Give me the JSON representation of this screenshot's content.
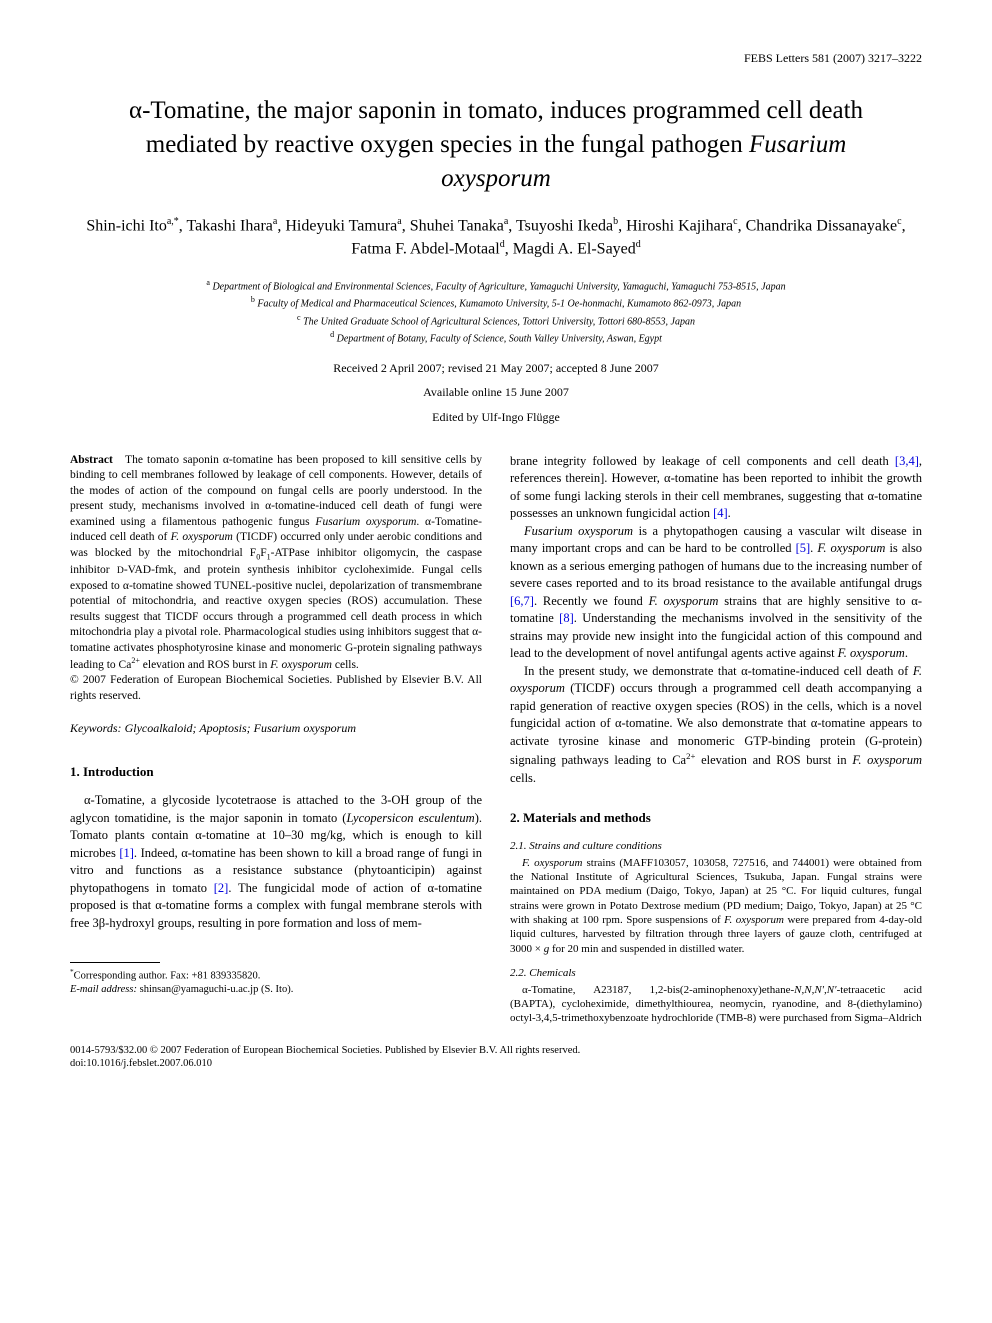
{
  "header": "FEBS Letters 581 (2007) 3217–3222",
  "title_html": "α-Tomatine, the major saponin in tomato, induces programmed cell death mediated by reactive oxygen species in the fungal pathogen <em>Fusarium oxysporum</em>",
  "authors_html": "Shin-ichi Ito<sup>a,*</sup>, Takashi Ihara<sup>a</sup>, Hideyuki Tamura<sup>a</sup>, Shuhei Tanaka<sup>a</sup>, Tsuyoshi Ikeda<sup>b</sup>, Hiroshi Kajihara<sup>c</sup>, Chandrika Dissanayake<sup>c</sup>, Fatma F. Abdel-Motaal<sup>d</sup>, Magdi A. El-Sayed<sup>d</sup>",
  "affiliations_html": "<sup>a</sup> Department of Biological and Environmental Sciences, Faculty of Agriculture, Yamaguchi University, Yamaguchi, Yamaguchi 753-8515, Japan<br><sup>b</sup> Faculty of Medical and Pharmaceutical Sciences, Kumamoto University, 5-1 Oe-honmachi, Kumamoto 862-0973, Japan<br><sup>c</sup> The United Graduate School of Agricultural Sciences, Tottori University, Tottori 680-8553, Japan<br><sup>d</sup> Department of Botany, Faculty of Science, South Valley University, Aswan, Egypt",
  "dates": "Received 2 April 2007; revised 21 May 2007; accepted 8 June 2007",
  "available": "Available online 15 June 2007",
  "edited": "Edited by Ulf-Ingo Flügge",
  "abstract_html": "<strong>Abstract</strong>&nbsp;&nbsp;&nbsp;The tomato saponin α-tomatine has been proposed to kill sensitive cells by binding to cell membranes followed by leakage of cell components. However, details of the modes of action of the compound on fungal cells are poorly understood. In the present study, mechanisms involved in α-tomatine-induced cell death of fungi were examined using a filamentous pathogenic fungus <em>Fusarium oxysporum</em>. α-Tomatine-induced cell death of <em>F. oxysporum</em> (TICDF) occurred only under aerobic conditions and was blocked by the mitochondrial F<sub>0</sub>F<sub>1</sub>-ATPase inhibitor oligomycin, the caspase inhibitor <small>D</small>-VAD-fmk, and protein synthesis inhibitor cycloheximide. Fungal cells exposed to α-tomatine showed TUNEL-positive nuclei, depolarization of transmembrane potential of mitochondria, and reactive oxygen species (ROS) accumulation. These results suggest that TICDF occurs through a programmed cell death process in which mitochondria play a pivotal role. Pharmacological studies using inhibitors suggest that α-tomatine activates phosphotyrosine kinase and monomeric G-protein signaling pathways leading to Ca<sup>2+</sup> elevation and ROS burst in <em>F. oxysporum</em> cells.<br>© 2007 Federation of European Biochemical Societies. Published by Elsevier B.V. All rights reserved.",
  "keywords_html": "<span class=\"label\">Keywords:</span> Glycoalkaloid; Apoptosis; <em>Fusarium oxysporum</em>",
  "section1_heading": "1. Introduction",
  "intro_p1_html": "α-Tomatine, a glycoside lycotetraose is attached to the 3-OH group of the aglycon tomatidine, is the major saponin in tomato (<em>Lycopersicon esculentum</em>). Tomato plants contain α-tomatine at 10–30 mg/kg, which is enough to kill microbes <span class=\"ref\">[1]</span>. Indeed, α-tomatine has been shown to kill a broad range of fungi in vitro and functions as a resistance substance (phytoanticipin) against phytopathogens in tomato <span class=\"ref\">[2]</span>. The fungicidal mode of action of α-tomatine proposed is that α-tomatine forms a complex with fungal membrane sterols with free 3β-hydroxyl groups, resulting in pore formation and loss of mem-",
  "col2_p1_html": "brane integrity followed by leakage of cell components and cell death <span class=\"ref\">[3,4]</span>, references therein]. However, α-tomatine has been reported to inhibit the growth of some fungi lacking sterols in their cell membranes, suggesting that α-tomatine possesses an unknown fungicidal action <span class=\"ref\">[4]</span>.",
  "col2_p2_html": "<em>Fusarium oxysporum</em> is a phytopathogen causing a vascular wilt disease in many important crops and can be hard to be controlled <span class=\"ref\">[5]</span>. <em>F. oxysporum</em> is also known as a serious emerging pathogen of humans due to the increasing number of severe cases reported and to its broad resistance to the available antifungal drugs <span class=\"ref\">[6,7]</span>. Recently we found <em>F. oxysporum</em> strains that are highly sensitive to α-tomatine <span class=\"ref\">[8]</span>. Understanding the mechanisms involved in the sensitivity of the strains may provide new insight into the fungicidal action of this compound and lead to the development of novel antifungal agents active against <em>F. oxysporum</em>.",
  "col2_p3_html": "In the present study, we demonstrate that α-tomatine-induced cell death of <em>F. oxysporum</em> (TICDF) occurs through a programmed cell death accompanying a rapid generation of reactive oxygen species (ROS) in the cells, which is a novel fungicidal action of α-tomatine. We also demonstrate that α-tomatine appears to activate tyrosine kinase and monomeric GTP-binding protein (G-protein) signaling pathways leading to Ca<sup>2+</sup> elevation and ROS burst in <em>F. oxysporum</em> cells.",
  "section2_heading": "2. Materials and methods",
  "sub21_heading": "2.1. Strains and culture conditions",
  "sub21_text_html": "<em>F. oxysporum</em> strains (MAFF103057, 103058, 727516, and 744001) were obtained from the National Institute of Agricultural Sciences, Tsukuba, Japan. Fungal strains were maintained on PDA medium (Daigo, Tokyo, Japan) at 25 °C. For liquid cultures, fungal strains were grown in Potato Dextrose medium (PD medium; Daigo, Tokyo, Japan) at 25 °C with shaking at 100 rpm. Spore suspensions of <em>F. oxysporum</em> were prepared from 4-day-old liquid cultures, harvested by filtration through three layers of gauze cloth, centrifuged at 3000 × <em>g</em> for 20 min and suspended in distilled water.",
  "sub22_heading": "2.2. Chemicals",
  "sub22_text_html": "α-Tomatine, A23187, 1,2-bis(2-aminophenoxy)ethane-<em>N,N,N′,N′</em>-tetraacetic acid (BAPTA), cycloheximide, dimethylthiourea, neomycin, ryanodine, and 8-(diethylamino) octyl-3,4,5-trimethoxybenzoate hydrochloride (TMB-8) were purchased from Sigma–Aldrich",
  "corresponding_html": "<sup>*</sup>Corresponding author. Fax: +81 839335820.<br><em>E-mail address:</em> shinsan@yamaguchi-u.ac.jp (S. Ito).",
  "bottom_html": "0014-5793/$32.00 © 2007 Federation of European Biochemical Societies. Published by Elsevier B.V. All rights reserved.<br>doi:10.1016/j.febslet.2007.06.010"
}
